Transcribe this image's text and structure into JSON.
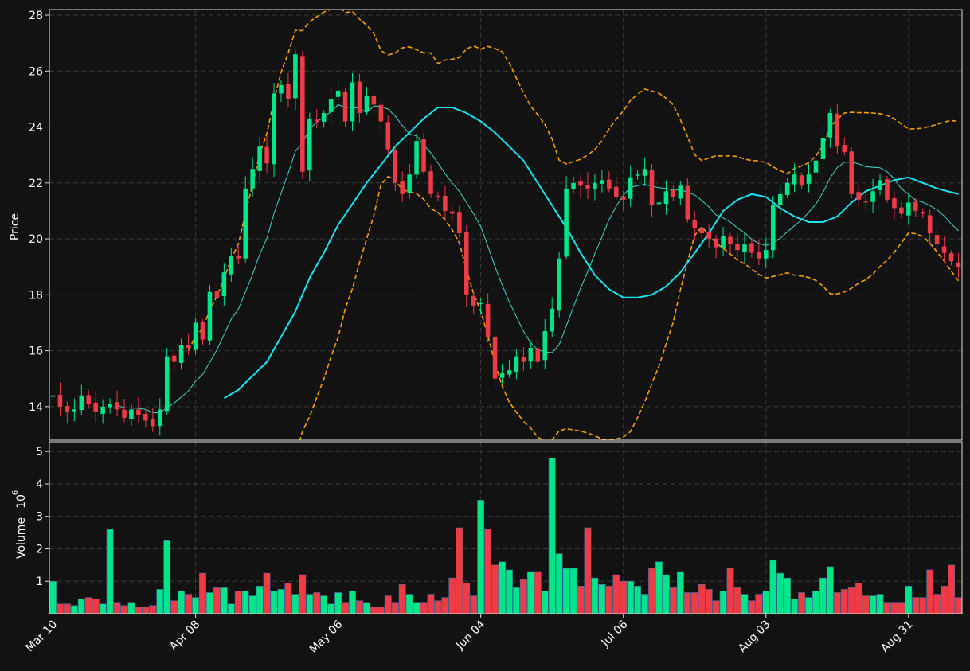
{
  "chart_data": {
    "type": "candlestick",
    "x_range": [
      -0.5,
      127.5
    ],
    "ylim_price": [
      12.8,
      28.2
    ],
    "ylim_volume": [
      0,
      5.3
    ],
    "grid": true,
    "ylabel_price": "Price",
    "ylabel_volume": "Volume",
    "volume_exponent_label": "10",
    "volume_exponent_power": "6",
    "colors": {
      "background": "#121212",
      "up": "#00e58a",
      "down": "#ef3b46",
      "grid": "#3a3a3a",
      "ma_long": "#18e6f2",
      "ma_short": "#40d8cc",
      "bands": "#f5a000",
      "frame": "#e0e0e0"
    },
    "x_tick_labels": [
      {
        "index": 0,
        "label": "Mar 10"
      },
      {
        "index": 20,
        "label": "Apr 08"
      },
      {
        "index": 40,
        "label": "May 06"
      },
      {
        "index": 60,
        "label": "Jun 04"
      },
      {
        "index": 80,
        "label": "Jul 06"
      },
      {
        "index": 100,
        "label": "Aug 03"
      },
      {
        "index": 120,
        "label": "Aug 31"
      }
    ],
    "y_ticks_price": [
      14,
      16,
      18,
      20,
      22,
      24,
      26,
      28
    ],
    "y_ticks_volume": [
      1,
      2,
      3,
      4,
      5
    ],
    "close_anchors": [
      [
        0,
        14.4
      ],
      [
        1,
        14.0
      ],
      [
        2,
        13.8
      ],
      [
        3,
        13.9
      ],
      [
        4,
        14.4
      ],
      [
        5,
        14.1
      ],
      [
        6,
        13.8
      ],
      [
        7,
        14.0
      ],
      [
        8,
        14.1
      ],
      [
        9,
        13.9
      ],
      [
        10,
        13.6
      ],
      [
        11,
        13.9
      ],
      [
        12,
        13.7
      ],
      [
        13,
        13.5
      ],
      [
        14,
        13.3
      ],
      [
        15,
        13.9
      ],
      [
        16,
        15.8
      ],
      [
        17,
        15.6
      ],
      [
        18,
        16.2
      ],
      [
        19,
        16.1
      ],
      [
        20,
        17.0
      ],
      [
        21,
        16.4
      ],
      [
        22,
        18.1
      ],
      [
        23,
        17.9
      ],
      [
        24,
        18.8
      ],
      [
        25,
        19.4
      ],
      [
        26,
        19.3
      ],
      [
        27,
        21.8
      ],
      [
        28,
        22.5
      ],
      [
        29,
        23.3
      ],
      [
        30,
        22.7
      ],
      [
        31,
        25.2
      ],
      [
        32,
        25.5
      ],
      [
        33,
        25.0
      ],
      [
        34,
        26.6
      ],
      [
        35,
        22.4
      ],
      [
        36,
        24.3
      ],
      [
        37,
        24.2
      ],
      [
        38,
        24.5
      ],
      [
        39,
        25.0
      ],
      [
        40,
        25.3
      ],
      [
        41,
        24.2
      ],
      [
        42,
        25.6
      ],
      [
        43,
        24.5
      ],
      [
        44,
        25.1
      ],
      [
        45,
        24.8
      ],
      [
        46,
        24.2
      ],
      [
        47,
        23.2
      ],
      [
        48,
        22.0
      ],
      [
        49,
        21.6
      ],
      [
        50,
        22.3
      ],
      [
        51,
        23.5
      ],
      [
        52,
        22.4
      ],
      [
        53,
        21.6
      ],
      [
        54,
        21.5
      ],
      [
        55,
        21.0
      ],
      [
        56,
        20.9
      ],
      [
        57,
        20.2
      ],
      [
        58,
        18.0
      ],
      [
        59,
        17.6
      ],
      [
        60,
        17.7
      ],
      [
        61,
        16.5
      ],
      [
        62,
        15.0
      ],
      [
        63,
        15.2
      ],
      [
        64,
        15.3
      ],
      [
        65,
        15.8
      ],
      [
        66,
        15.6
      ],
      [
        67,
        16.1
      ],
      [
        68,
        15.6
      ],
      [
        69,
        16.7
      ],
      [
        70,
        17.5
      ],
      [
        71,
        19.3
      ],
      [
        72,
        21.8
      ],
      [
        73,
        22.0
      ],
      [
        74,
        21.9
      ],
      [
        75,
        21.8
      ],
      [
        76,
        22.0
      ],
      [
        77,
        22.1
      ],
      [
        78,
        21.8
      ],
      [
        79,
        21.5
      ],
      [
        80,
        21.4
      ],
      [
        81,
        22.2
      ],
      [
        82,
        22.3
      ],
      [
        83,
        22.5
      ],
      [
        84,
        21.2
      ],
      [
        85,
        21.3
      ],
      [
        86,
        21.7
      ],
      [
        87,
        21.5
      ],
      [
        88,
        21.9
      ],
      [
        89,
        20.7
      ],
      [
        90,
        20.4
      ],
      [
        91,
        20.2
      ],
      [
        92,
        20.0
      ],
      [
        93,
        19.7
      ],
      [
        94,
        20.1
      ],
      [
        95,
        19.8
      ],
      [
        96,
        19.6
      ],
      [
        97,
        19.8
      ],
      [
        98,
        19.5
      ],
      [
        99,
        19.3
      ],
      [
        100,
        19.6
      ],
      [
        101,
        21.2
      ],
      [
        102,
        21.6
      ],
      [
        103,
        22.0
      ],
      [
        104,
        22.3
      ],
      [
        105,
        21.9
      ],
      [
        106,
        22.3
      ],
      [
        107,
        22.8
      ],
      [
        108,
        23.6
      ],
      [
        109,
        24.5
      ],
      [
        110,
        23.3
      ],
      [
        111,
        23.1
      ],
      [
        112,
        21.6
      ],
      [
        113,
        21.4
      ],
      [
        114,
        21.3
      ],
      [
        115,
        21.7
      ],
      [
        116,
        22.1
      ],
      [
        117,
        21.4
      ],
      [
        118,
        21.1
      ],
      [
        119,
        20.9
      ],
      [
        120,
        21.3
      ],
      [
        121,
        21.0
      ],
      [
        122,
        20.9
      ],
      [
        123,
        20.2
      ],
      [
        124,
        19.8
      ],
      [
        125,
        19.5
      ],
      [
        126,
        19.2
      ],
      [
        127,
        19.0
      ]
    ],
    "volume_anchors": [
      [
        0,
        1.0
      ],
      [
        1,
        0.3
      ],
      [
        2,
        0.3
      ],
      [
        3,
        0.25
      ],
      [
        4,
        0.45
      ],
      [
        5,
        0.5
      ],
      [
        6,
        0.45
      ],
      [
        7,
        0.3
      ],
      [
        8,
        2.6
      ],
      [
        9,
        0.35
      ],
      [
        10,
        0.25
      ],
      [
        11,
        0.35
      ],
      [
        12,
        0.2
      ],
      [
        13,
        0.2
      ],
      [
        14,
        0.25
      ],
      [
        15,
        0.75
      ],
      [
        16,
        2.25
      ],
      [
        17,
        0.4
      ],
      [
        18,
        0.7
      ],
      [
        19,
        0.6
      ],
      [
        20,
        0.5
      ],
      [
        21,
        1.25
      ],
      [
        22,
        0.65
      ],
      [
        23,
        0.8
      ],
      [
        24,
        0.8
      ],
      [
        25,
        0.3
      ],
      [
        26,
        0.7
      ],
      [
        27,
        0.7
      ],
      [
        28,
        0.55
      ],
      [
        29,
        0.85
      ],
      [
        30,
        1.25
      ],
      [
        31,
        0.7
      ],
      [
        32,
        0.75
      ],
      [
        33,
        0.95
      ],
      [
        34,
        0.6
      ],
      [
        35,
        1.2
      ],
      [
        36,
        0.6
      ],
      [
        37,
        0.65
      ],
      [
        38,
        0.55
      ],
      [
        39,
        0.3
      ],
      [
        40,
        0.65
      ],
      [
        41,
        0.35
      ],
      [
        42,
        0.7
      ],
      [
        43,
        0.4
      ],
      [
        44,
        0.35
      ],
      [
        45,
        0.2
      ],
      [
        46,
        0.2
      ],
      [
        47,
        0.55
      ],
      [
        48,
        0.35
      ],
      [
        49,
        0.9
      ],
      [
        50,
        0.6
      ],
      [
        51,
        0.35
      ],
      [
        52,
        0.35
      ],
      [
        53,
        0.6
      ],
      [
        54,
        0.4
      ],
      [
        55,
        0.5
      ],
      [
        56,
        1.1
      ],
      [
        57,
        2.65
      ],
      [
        58,
        0.95
      ],
      [
        59,
        0.55
      ],
      [
        60,
        3.5
      ],
      [
        61,
        2.6
      ],
      [
        62,
        1.5
      ],
      [
        63,
        1.6
      ],
      [
        64,
        1.35
      ],
      [
        65,
        0.8
      ],
      [
        66,
        1.05
      ],
      [
        67,
        1.3
      ],
      [
        68,
        1.3
      ],
      [
        69,
        0.7
      ],
      [
        70,
        4.8
      ],
      [
        71,
        1.85
      ],
      [
        72,
        1.4
      ],
      [
        73,
        1.4
      ],
      [
        74,
        0.85
      ],
      [
        75,
        2.65
      ],
      [
        76,
        1.1
      ],
      [
        77,
        0.9
      ],
      [
        78,
        0.85
      ],
      [
        79,
        1.2
      ],
      [
        80,
        1.0
      ],
      [
        81,
        1.0
      ],
      [
        82,
        0.85
      ],
      [
        83,
        0.6
      ],
      [
        84,
        1.4
      ],
      [
        85,
        1.6
      ],
      [
        86,
        1.2
      ],
      [
        87,
        0.8
      ],
      [
        88,
        1.3
      ],
      [
        89,
        0.65
      ],
      [
        90,
        0.65
      ],
      [
        91,
        0.9
      ],
      [
        92,
        0.75
      ],
      [
        93,
        0.4
      ],
      [
        94,
        0.7
      ],
      [
        95,
        1.4
      ],
      [
        96,
        0.8
      ],
      [
        97,
        0.6
      ],
      [
        98,
        0.4
      ],
      [
        99,
        0.6
      ],
      [
        100,
        0.7
      ],
      [
        101,
        1.65
      ],
      [
        102,
        1.25
      ],
      [
        103,
        1.1
      ],
      [
        104,
        0.45
      ],
      [
        105,
        0.65
      ],
      [
        106,
        0.5
      ],
      [
        107,
        0.7
      ],
      [
        108,
        1.1
      ],
      [
        109,
        1.45
      ],
      [
        110,
        0.65
      ],
      [
        111,
        0.75
      ],
      [
        112,
        0.8
      ],
      [
        113,
        0.95
      ],
      [
        114,
        0.55
      ],
      [
        115,
        0.55
      ],
      [
        116,
        0.6
      ],
      [
        117,
        0.35
      ],
      [
        118,
        0.35
      ],
      [
        119,
        0.35
      ],
      [
        120,
        0.85
      ],
      [
        121,
        0.5
      ],
      [
        122,
        0.5
      ],
      [
        123,
        1.35
      ],
      [
        124,
        0.6
      ],
      [
        125,
        0.85
      ],
      [
        126,
        1.5
      ],
      [
        127,
        0.5
      ]
    ],
    "ma_long_anchors": [
      [
        24,
        14.3
      ],
      [
        26,
        14.6
      ],
      [
        28,
        15.1
      ],
      [
        30,
        15.6
      ],
      [
        32,
        16.5
      ],
      [
        34,
        17.4
      ],
      [
        36,
        18.6
      ],
      [
        38,
        19.5
      ],
      [
        40,
        20.5
      ],
      [
        44,
        22.0
      ],
      [
        48,
        23.3
      ],
      [
        52,
        24.3
      ],
      [
        54,
        24.7
      ],
      [
        56,
        24.7
      ],
      [
        58,
        24.5
      ],
      [
        60,
        24.2
      ],
      [
        62,
        23.8
      ],
      [
        64,
        23.3
      ],
      [
        66,
        22.8
      ],
      [
        68,
        22.0
      ],
      [
        70,
        21.2
      ],
      [
        72,
        20.4
      ],
      [
        74,
        19.5
      ],
      [
        76,
        18.7
      ],
      [
        78,
        18.2
      ],
      [
        80,
        17.9
      ],
      [
        82,
        17.9
      ],
      [
        84,
        18.0
      ],
      [
        86,
        18.3
      ],
      [
        88,
        18.8
      ],
      [
        90,
        19.5
      ],
      [
        92,
        20.2
      ],
      [
        94,
        21.0
      ],
      [
        96,
        21.4
      ],
      [
        98,
        21.6
      ],
      [
        100,
        21.5
      ],
      [
        102,
        21.1
      ],
      [
        104,
        20.8
      ],
      [
        106,
        20.6
      ],
      [
        108,
        20.6
      ],
      [
        110,
        20.8
      ],
      [
        112,
        21.3
      ],
      [
        114,
        21.7
      ],
      [
        116,
        21.9
      ],
      [
        118,
        22.1
      ],
      [
        120,
        22.2
      ],
      [
        122,
        22.0
      ],
      [
        124,
        21.8
      ],
      [
        127,
        21.6
      ]
    ]
  }
}
